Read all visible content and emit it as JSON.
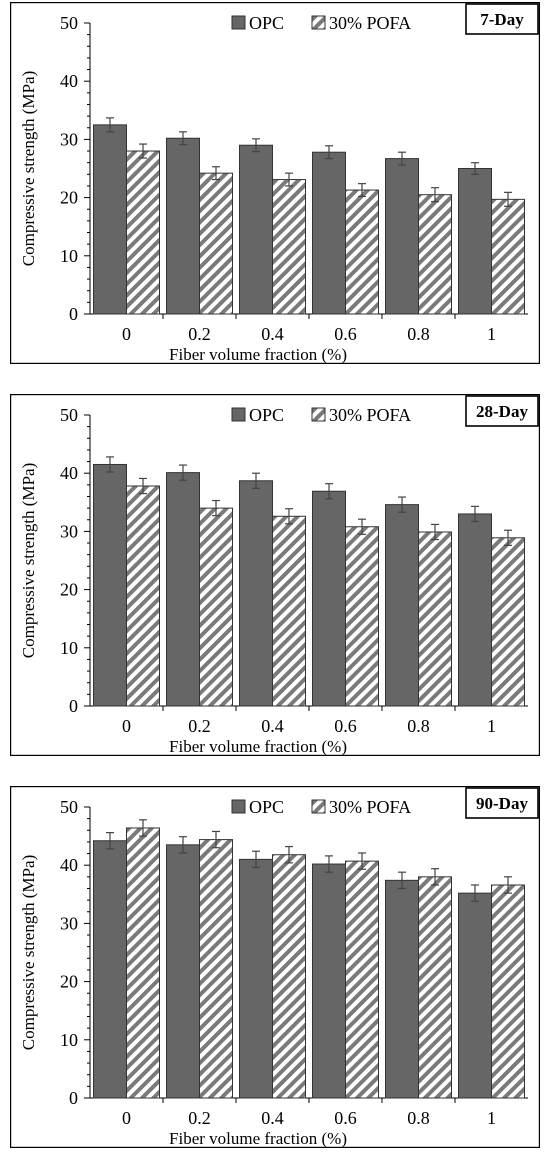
{
  "chart_data": [
    {
      "type": "bar",
      "label": "7-Day",
      "categories": [
        "0",
        "0.2",
        "0.4",
        "0.6",
        "0.8",
        "1"
      ],
      "series": [
        {
          "name": "OPC",
          "values": [
            32.5,
            30.2,
            29.0,
            27.8,
            26.7,
            25.0
          ],
          "errors": [
            1.2,
            1.1,
            1.1,
            1.1,
            1.1,
            1.0
          ]
        },
        {
          "name": "30% POFA",
          "values": [
            28.0,
            24.2,
            23.1,
            21.3,
            20.5,
            19.7
          ],
          "errors": [
            1.2,
            1.1,
            1.1,
            1.1,
            1.2,
            1.2
          ]
        }
      ],
      "xlabel": "Fiber volume fraction (%)",
      "ylabel": "Compressive strength (MPa)",
      "ylim": [
        0,
        50
      ],
      "yticks": [
        "0",
        "10",
        "20",
        "30",
        "40",
        "50"
      ],
      "pofa_pattern": "hatched"
    },
    {
      "type": "bar",
      "label": "28-Day",
      "categories": [
        "0",
        "0.2",
        "0.4",
        "0.6",
        "0.8",
        "1"
      ],
      "series": [
        {
          "name": "OPC",
          "values": [
            41.5,
            40.1,
            38.7,
            36.9,
            34.6,
            33.0
          ],
          "errors": [
            1.3,
            1.3,
            1.3,
            1.3,
            1.3,
            1.3
          ]
        },
        {
          "name": "30% POFA",
          "values": [
            37.8,
            34.0,
            32.6,
            30.8,
            29.9,
            28.9
          ],
          "errors": [
            1.3,
            1.3,
            1.3,
            1.3,
            1.3,
            1.3
          ]
        }
      ],
      "xlabel": "Fiber volume fraction (%)",
      "ylabel": "Compressive strength (MPa)",
      "ylim": [
        0,
        50
      ],
      "yticks": [
        "0",
        "10",
        "20",
        "30",
        "40",
        "50"
      ],
      "pofa_pattern": "hatched"
    },
    {
      "type": "bar",
      "label": "90-Day",
      "categories": [
        "0",
        "0.2",
        "0.4",
        "0.6",
        "0.8",
        "1"
      ],
      "series": [
        {
          "name": "OPC",
          "values": [
            44.2,
            43.5,
            41.0,
            40.2,
            37.4,
            35.2
          ],
          "errors": [
            1.4,
            1.4,
            1.4,
            1.4,
            1.4,
            1.4
          ]
        },
        {
          "name": "30% POFA",
          "values": [
            46.4,
            44.4,
            41.8,
            40.7,
            38.0,
            36.6
          ],
          "errors": [
            1.4,
            1.4,
            1.4,
            1.4,
            1.4,
            1.4
          ]
        }
      ],
      "xlabel": "Fiber volume fraction (%)",
      "ylabel": "Compressive strength (MPa)",
      "ylim": [
        0,
        50
      ],
      "yticks": [
        "0",
        "10",
        "20",
        "30",
        "40",
        "50"
      ],
      "pofa_pattern": "hatched"
    }
  ],
  "colors": {
    "opc_fill": "#666666",
    "pofa_hatch": "#7a7a7a",
    "pofa_background": "#ffffff",
    "outline": "#333333"
  }
}
